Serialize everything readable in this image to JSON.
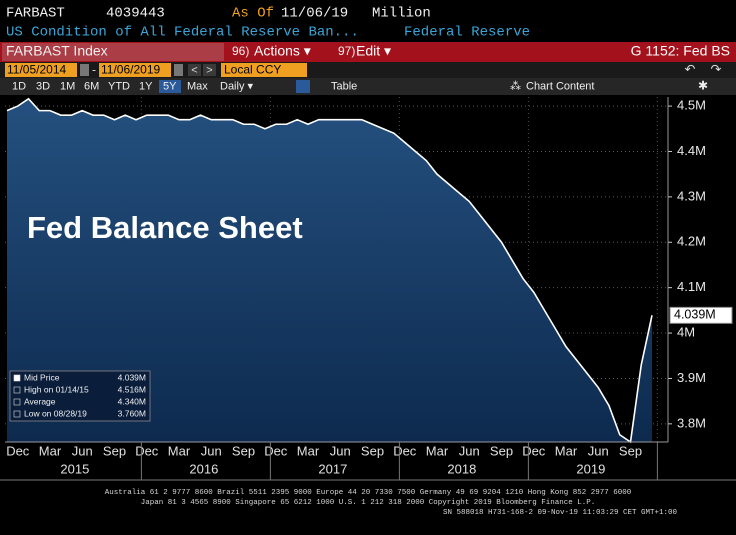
{
  "header": {
    "ticker": "FARBAST",
    "code": "4039443",
    "as_of_label": "As Of",
    "as_of_date": "11/06/19",
    "units": "Million",
    "description": "US Condition of All Federal Reserve Ban...",
    "source": "Federal Reserve"
  },
  "toolbar": {
    "security": "FARBAST Index",
    "actions_num": "96)",
    "actions": "Actions ▾",
    "edit_num": "97)",
    "edit": "Edit ▾",
    "page": "G 1152: Fed BS",
    "start_date": "11/05/2014",
    "end_date": "11/06/2019",
    "currency": "Local CCY",
    "periods": [
      "1D",
      "3D",
      "1M",
      "6M",
      "YTD",
      "1Y",
      "5Y",
      "Max"
    ],
    "frequency": "Daily ▾",
    "table": "Table",
    "chart_content": "Chart Content"
  },
  "chart_data": {
    "type": "area",
    "annotation": "Fed Balance Sheet",
    "categories": [
      null,
      "Dec",
      null,
      null,
      "Mar",
      null,
      null,
      "Jun",
      null,
      null,
      "Sep",
      null,
      null,
      "Dec",
      null,
      null,
      "Mar",
      null,
      null,
      "Jun",
      null,
      null,
      "Sep",
      null,
      null,
      "Dec",
      null,
      null,
      "Mar",
      null,
      null,
      "Jun",
      null,
      null,
      "Sep",
      null,
      null,
      "Dec",
      null,
      null,
      "Mar",
      null,
      null,
      "Jun",
      null,
      null,
      "Sep",
      null,
      null,
      "Dec",
      null,
      null,
      "Mar",
      null,
      null,
      "Jun",
      null,
      null,
      "Sep",
      null,
      null
    ],
    "years": [
      "2015",
      "2016",
      "2017",
      "2018",
      "2019"
    ],
    "series": [
      {
        "name": "FARBAST Index",
        "color": "#ffffff",
        "values": [
          4.49,
          4.5,
          4.516,
          4.49,
          4.49,
          4.48,
          4.48,
          4.49,
          4.48,
          4.48,
          4.47,
          4.48,
          4.47,
          4.48,
          4.48,
          4.48,
          4.47,
          4.47,
          4.48,
          4.47,
          4.47,
          4.47,
          4.46,
          4.46,
          4.45,
          4.46,
          4.46,
          4.47,
          4.46,
          4.47,
          4.47,
          4.47,
          4.47,
          4.47,
          4.46,
          4.45,
          4.44,
          4.42,
          4.4,
          4.38,
          4.35,
          4.33,
          4.31,
          4.29,
          4.26,
          4.23,
          4.2,
          4.16,
          4.12,
          4.09,
          4.05,
          4.01,
          3.97,
          3.94,
          3.91,
          3.88,
          3.84,
          3.776,
          3.76,
          3.93,
          4.039
        ]
      }
    ],
    "ylim": [
      3.76,
      4.52
    ],
    "yticks": [
      {
        "value": 3.8,
        "label": "3.8M"
      },
      {
        "value": 3.9,
        "label": "3.9M"
      },
      {
        "value": 4.0,
        "label": "4M"
      },
      {
        "value": 4.1,
        "label": "4.1M"
      },
      {
        "value": 4.2,
        "label": "4.2M"
      },
      {
        "value": 4.3,
        "label": "4.3M"
      },
      {
        "value": 4.4,
        "label": "4.4M"
      },
      {
        "value": 4.5,
        "label": "4.5M"
      }
    ],
    "grid": true,
    "legend_position": "lower left",
    "stats": [
      {
        "label": "Mid Price",
        "value": 4.039,
        "value_label": "4.039M"
      },
      {
        "label": "High on 01/14/15",
        "value": 4.516,
        "value_label": "4.516M"
      },
      {
        "label": "Average",
        "value": 4.34,
        "value_label": "4.340M"
      },
      {
        "label": "Low on 08/28/19",
        "value": 3.76,
        "value_label": "3.760M"
      }
    ]
  },
  "footer": {
    "line1": "Australia 61 2 9777 8600 Brazil 5511 2395 9000 Europe 44 20 7330 7500 Germany 49 69 9204 1210 Hong Kong 852 2977 6000",
    "line2": "Japan 81 3 4565 8900      Singapore 65 6212 1000      U.S. 1 212 318 2000      Copyright 2019 Bloomberg Finance L.P.",
    "line3": "SN 588018 H731-168-2 09-Nov-19 11:03:29 CET  GMT+1:00"
  }
}
